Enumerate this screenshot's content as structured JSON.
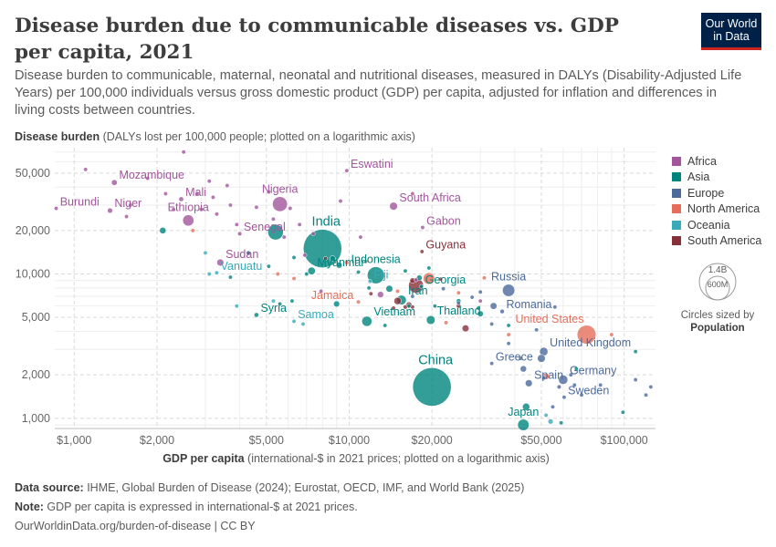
{
  "header": {
    "title": "Disease burden due to communicable diseases vs. GDP per capita, 2021",
    "subtitle": "Disease burden to communicable, maternal, neonatal and nutritional diseases, measured in DALYs (Disability-Adjusted Life Years) per 100,000 individuals versus gross domestic product (GDP) per capita, adjusted for inflation and differences in living costs between countries.",
    "logo_line1": "Our World",
    "logo_line2": "in Data"
  },
  "axes": {
    "y_label_bold": "Disease burden",
    "y_label_rest": " (DALYs lost per 100,000 people; plotted on a logarithmic axis)",
    "x_label_bold": "GDP per capita",
    "x_label_rest": " (international-$ in 2021 prices; plotted on a logarithmic axis)"
  },
  "legend": {
    "items": [
      {
        "label": "Africa",
        "color": "#a2559c"
      },
      {
        "label": "Asia",
        "color": "#00847e"
      },
      {
        "label": "Europe",
        "color": "#4c6a9c"
      },
      {
        "label": "North America",
        "color": "#e56e5a"
      },
      {
        "label": "Oceania",
        "color": "#38aaba"
      },
      {
        "label": "South America",
        "color": "#883039"
      }
    ],
    "size_big": "1.4B",
    "size_small": "600M",
    "size_caption": "Circles sized by",
    "size_caption_bold": "Population"
  },
  "footer": {
    "source_label": "Data source:",
    "source_text": " IHME, Global Burden of Disease (2024); Eurostat, OECD, IMF, and World Bank (2025)",
    "note_label": "Note:",
    "note_text": " GDP per capita is expressed in international-$ at 2021 prices.",
    "url": "OurWorldinData.org/burden-of-disease | CC BY"
  },
  "chart_data": {
    "type": "scatter",
    "x_scale": "log",
    "y_scale": "log",
    "xlim": [
      850,
      130000
    ],
    "ylim": [
      850,
      75000
    ],
    "x_ticks": [
      1000,
      2000,
      5000,
      10000,
      20000,
      50000,
      100000
    ],
    "x_tick_labels": [
      "$1,000",
      "$2,000",
      "$5,000",
      "$10,000",
      "$20,000",
      "$50,000",
      "$100,000"
    ],
    "y_ticks": [
      1000,
      2000,
      5000,
      10000,
      20000,
      50000
    ],
    "y_tick_labels": [
      "1,000",
      "2,000",
      "5,000",
      "10,000",
      "20,000",
      "50,000"
    ],
    "grid": true,
    "legend_position": "right",
    "labeled_points": [
      {
        "name": "Burundi",
        "region": "Africa",
        "x": 860,
        "y": 28500,
        "pop": 12.5
      },
      {
        "name": "Mozambique",
        "region": "Africa",
        "x": 1400,
        "y": 43000,
        "pop": 32
      },
      {
        "name": "Niger",
        "region": "Africa",
        "x": 1350,
        "y": 27500,
        "pop": 25
      },
      {
        "name": "Mali",
        "region": "Africa",
        "x": 2450,
        "y": 33000,
        "pop": 22
      },
      {
        "name": "Ethiopia",
        "region": "Africa",
        "x": 2600,
        "y": 23500,
        "pop": 120
      },
      {
        "name": "Sudan",
        "region": "Africa",
        "x": 3400,
        "y": 12000,
        "pop": 46
      },
      {
        "name": "Senegal",
        "region": "Africa",
        "x": 4000,
        "y": 19000,
        "pop": 17
      },
      {
        "name": "Nigeria",
        "region": "Africa",
        "x": 5600,
        "y": 30500,
        "pop": 213
      },
      {
        "name": "Eswatini",
        "region": "Africa",
        "x": 9800,
        "y": 52000,
        "pop": 1.2
      },
      {
        "name": "South Africa",
        "region": "Africa",
        "x": 14500,
        "y": 29500,
        "pop": 60
      },
      {
        "name": "Gabon",
        "region": "Africa",
        "x": 18500,
        "y": 21000,
        "pop": 2.3
      },
      {
        "name": "India",
        "region": "Asia",
        "x": 8000,
        "y": 15000,
        "pop": 1410
      },
      {
        "name": "Myanmar",
        "region": "Asia",
        "x": 7300,
        "y": 10500,
        "pop": 54
      },
      {
        "name": "Syria",
        "region": "Asia",
        "x": 4600,
        "y": 5200,
        "pop": 21
      },
      {
        "name": "Indonesia",
        "region": "Asia",
        "x": 12500,
        "y": 9800,
        "pop": 274
      },
      {
        "name": "Iran",
        "region": "Asia",
        "x": 15500,
        "y": 6600,
        "pop": 88
      },
      {
        "name": "Vietnam",
        "region": "Asia",
        "x": 11600,
        "y": 4700,
        "pop": 98
      },
      {
        "name": "Thailand",
        "region": "Asia",
        "x": 19800,
        "y": 4800,
        "pop": 72
      },
      {
        "name": "Georgia",
        "region": "Asia",
        "x": 18300,
        "y": 8200,
        "pop": 3.7
      },
      {
        "name": "Japan",
        "region": "Asia",
        "x": 43000,
        "y": 900,
        "pop": 125
      },
      {
        "name": "China",
        "region": "Asia",
        "x": 20000,
        "y": 1650,
        "pop": 1420
      },
      {
        "name": "Russia",
        "region": "Europe",
        "x": 38000,
        "y": 7700,
        "pop": 145
      },
      {
        "name": "Romania",
        "region": "Europe",
        "x": 36000,
        "y": 5500,
        "pop": 19
      },
      {
        "name": "United Kingdom",
        "region": "Europe",
        "x": 51000,
        "y": 2900,
        "pop": 67
      },
      {
        "name": "Greece",
        "region": "Europe",
        "x": 33000,
        "y": 2400,
        "pop": 10.5
      },
      {
        "name": "Spain",
        "region": "Europe",
        "x": 45000,
        "y": 1750,
        "pop": 47
      },
      {
        "name": "Germany",
        "region": "Europe",
        "x": 60000,
        "y": 1850,
        "pop": 83
      },
      {
        "name": "Sweden",
        "region": "Europe",
        "x": 60500,
        "y": 1400,
        "pop": 10.4
      },
      {
        "name": "United States",
        "region": "North America",
        "x": 73000,
        "y": 3800,
        "pop": 337
      },
      {
        "name": "Jamaica",
        "region": "North America",
        "x": 10800,
        "y": 6400,
        "pop": 2.8
      },
      {
        "name": "Guyana",
        "region": "South America",
        "x": 18400,
        "y": 14300,
        "pop": 0.8
      },
      {
        "name": "Fiji",
        "region": "Oceania",
        "x": 11900,
        "y": 8900,
        "pop": 0.9
      },
      {
        "name": "Vanuatu",
        "region": "Oceania",
        "x": 3300,
        "y": 10200,
        "pop": 0.3
      },
      {
        "name": "Samoa",
        "region": "Oceania",
        "x": 6300,
        "y": 4700,
        "pop": 0.2
      }
    ],
    "other_points": [
      {
        "region": "Africa",
        "x": 1100,
        "y": 53000,
        "pop": 5
      },
      {
        "region": "Africa",
        "x": 1600,
        "y": 30000,
        "pop": 12
      },
      {
        "region": "Africa",
        "x": 1550,
        "y": 25000,
        "pop": 9
      },
      {
        "region": "Africa",
        "x": 1850,
        "y": 46000,
        "pop": 5
      },
      {
        "region": "Africa",
        "x": 2150,
        "y": 36000,
        "pop": 10
      },
      {
        "region": "Africa",
        "x": 2300,
        "y": 28000,
        "pop": 8
      },
      {
        "region": "Africa",
        "x": 2500,
        "y": 70000,
        "pop": 5
      },
      {
        "region": "Africa",
        "x": 2800,
        "y": 36000,
        "pop": 12
      },
      {
        "region": "Africa",
        "x": 2900,
        "y": 28000,
        "pop": 16
      },
      {
        "region": "Africa",
        "x": 3100,
        "y": 44000,
        "pop": 8
      },
      {
        "region": "Africa",
        "x": 3200,
        "y": 34000,
        "pop": 8
      },
      {
        "region": "Africa",
        "x": 3300,
        "y": 26000,
        "pop": 14
      },
      {
        "region": "Africa",
        "x": 3600,
        "y": 41000,
        "pop": 5
      },
      {
        "region": "Africa",
        "x": 3700,
        "y": 30000,
        "pop": 6
      },
      {
        "region": "Africa",
        "x": 3900,
        "y": 22000,
        "pop": 10
      },
      {
        "region": "Africa",
        "x": 4300,
        "y": 14000,
        "pop": 8
      },
      {
        "region": "Africa",
        "x": 4600,
        "y": 29000,
        "pop": 14
      },
      {
        "region": "Africa",
        "x": 5100,
        "y": 37000,
        "pop": 4
      },
      {
        "region": "Africa",
        "x": 5300,
        "y": 24000,
        "pop": 9
      },
      {
        "region": "Africa",
        "x": 5800,
        "y": 18000,
        "pop": 8
      },
      {
        "region": "Africa",
        "x": 6100,
        "y": 28500,
        "pop": 16
      },
      {
        "region": "Africa",
        "x": 6600,
        "y": 22000,
        "pop": 8
      },
      {
        "region": "Africa",
        "x": 6900,
        "y": 13500,
        "pop": 4
      },
      {
        "region": "Africa",
        "x": 7400,
        "y": 19000,
        "pop": 6
      },
      {
        "region": "Africa",
        "x": 9300,
        "y": 32000,
        "pop": 2
      },
      {
        "region": "Africa",
        "x": 7900,
        "y": 7600,
        "pop": 4
      },
      {
        "region": "Africa",
        "x": 11000,
        "y": 18000,
        "pop": 3
      },
      {
        "region": "Africa",
        "x": 13000,
        "y": 7200,
        "pop": 37
      },
      {
        "region": "Africa",
        "x": 17000,
        "y": 36000,
        "pop": 2.5
      },
      {
        "region": "Africa",
        "x": 17500,
        "y": 9100,
        "pop": 12
      },
      {
        "region": "Africa",
        "x": 30000,
        "y": 6500,
        "pop": 1.3
      },
      {
        "region": "Asia",
        "x": 2100,
        "y": 20000,
        "pop": 40
      },
      {
        "region": "Asia",
        "x": 3700,
        "y": 9500,
        "pop": 3
      },
      {
        "region": "Asia",
        "x": 4300,
        "y": 14000,
        "pop": 3
      },
      {
        "region": "Asia",
        "x": 5400,
        "y": 19500,
        "pop": 230
      },
      {
        "region": "Asia",
        "x": 5100,
        "y": 11300,
        "pop": 9
      },
      {
        "region": "Asia",
        "x": 5600,
        "y": 6200,
        "pop": 10
      },
      {
        "region": "Asia",
        "x": 6200,
        "y": 6500,
        "pop": 2
      },
      {
        "region": "Asia",
        "x": 6300,
        "y": 13000,
        "pop": 7
      },
      {
        "region": "Asia",
        "x": 7000,
        "y": 10000,
        "pop": 5
      },
      {
        "region": "Asia",
        "x": 8700,
        "y": 12800,
        "pop": 30
      },
      {
        "region": "Asia",
        "x": 9000,
        "y": 6200,
        "pop": 35
      },
      {
        "region": "Asia",
        "x": 9200,
        "y": 11500,
        "pop": 35
      },
      {
        "region": "Asia",
        "x": 10800,
        "y": 10300,
        "pop": 6
      },
      {
        "region": "Asia",
        "x": 11800,
        "y": 8000,
        "pop": 5
      },
      {
        "region": "Asia",
        "x": 13500,
        "y": 4400,
        "pop": 4
      },
      {
        "region": "Asia",
        "x": 14000,
        "y": 7900,
        "pop": 45
      },
      {
        "region": "Asia",
        "x": 16000,
        "y": 10500,
        "pop": 4
      },
      {
        "region": "Asia",
        "x": 16500,
        "y": 6000,
        "pop": 6
      },
      {
        "region": "Asia",
        "x": 18000,
        "y": 9400,
        "pop": 30
      },
      {
        "region": "Asia",
        "x": 19500,
        "y": 11000,
        "pop": 3
      },
      {
        "region": "Asia",
        "x": 20500,
        "y": 6000,
        "pop": 8
      },
      {
        "region": "Asia",
        "x": 25000,
        "y": 6500,
        "pop": 20
      },
      {
        "region": "Asia",
        "x": 29500,
        "y": 5800,
        "pop": 5
      },
      {
        "region": "Asia",
        "x": 30000,
        "y": 5300,
        "pop": 33
      },
      {
        "region": "Asia",
        "x": 38000,
        "y": 4400,
        "pop": 1.5
      },
      {
        "region": "Asia",
        "x": 44000,
        "y": 1200,
        "pop": 51
      },
      {
        "region": "Asia",
        "x": 59000,
        "y": 930,
        "pop": 3.5
      },
      {
        "region": "Asia",
        "x": 67000,
        "y": 2200,
        "pop": 10
      },
      {
        "region": "Asia",
        "x": 99000,
        "y": 1100,
        "pop": 3
      },
      {
        "region": "Asia",
        "x": 110000,
        "y": 2900,
        "pop": 3
      },
      {
        "region": "Europe",
        "x": 17000,
        "y": 7000,
        "pop": 7
      },
      {
        "region": "Europe",
        "x": 22000,
        "y": 7900,
        "pop": 10
      },
      {
        "region": "Europe",
        "x": 25000,
        "y": 6300,
        "pop": 4
      },
      {
        "region": "Europe",
        "x": 28000,
        "y": 6900,
        "pop": 7
      },
      {
        "region": "Europe",
        "x": 30000,
        "y": 7500,
        "pop": 2.8
      },
      {
        "region": "Europe",
        "x": 33000,
        "y": 4500,
        "pop": 1.9
      },
      {
        "region": "Europe",
        "x": 33500,
        "y": 6000,
        "pop": 44
      },
      {
        "region": "Europe",
        "x": 38000,
        "y": 3300,
        "pop": 10
      },
      {
        "region": "Europe",
        "x": 42000,
        "y": 2600,
        "pop": 10
      },
      {
        "region": "Europe",
        "x": 43000,
        "y": 2200,
        "pop": 38
      },
      {
        "region": "Europe",
        "x": 48000,
        "y": 4100,
        "pop": 4
      },
      {
        "region": "Europe",
        "x": 50000,
        "y": 2600,
        "pop": 59
      },
      {
        "region": "Europe",
        "x": 51000,
        "y": 1900,
        "pop": 10
      },
      {
        "region": "Europe",
        "x": 55000,
        "y": 1200,
        "pop": 5.5
      },
      {
        "region": "Europe",
        "x": 56000,
        "y": 5900,
        "pop": 1.3
      },
      {
        "region": "Europe",
        "x": 58000,
        "y": 1650,
        "pop": 17
      },
      {
        "region": "Europe",
        "x": 64000,
        "y": 2000,
        "pop": 9
      },
      {
        "region": "Europe",
        "x": 66000,
        "y": 1700,
        "pop": 5.5
      },
      {
        "region": "Europe",
        "x": 70000,
        "y": 1450,
        "pop": 5.4
      },
      {
        "region": "Europe",
        "x": 82000,
        "y": 1700,
        "pop": 8.7
      },
      {
        "region": "Europe",
        "x": 110000,
        "y": 1850,
        "pop": 5
      },
      {
        "region": "Europe",
        "x": 120000,
        "y": 1450,
        "pop": 0.6
      },
      {
        "region": "Europe",
        "x": 125000,
        "y": 1650,
        "pop": 0.6
      },
      {
        "region": "North America",
        "x": 2700,
        "y": 20000,
        "pop": 11
      },
      {
        "region": "North America",
        "x": 5500,
        "y": 10000,
        "pop": 6
      },
      {
        "region": "North America",
        "x": 6300,
        "y": 9300,
        "pop": 10
      },
      {
        "region": "North America",
        "x": 9800,
        "y": 12000,
        "pop": 18
      },
      {
        "region": "North America",
        "x": 11500,
        "y": 12200,
        "pop": 11
      },
      {
        "region": "North America",
        "x": 15000,
        "y": 7600,
        "pop": 11
      },
      {
        "region": "North America",
        "x": 19500,
        "y": 9300,
        "pop": 128
      },
      {
        "region": "North America",
        "x": 22500,
        "y": 4600,
        "pop": 5
      },
      {
        "region": "North America",
        "x": 25000,
        "y": 7400,
        "pop": 1.4
      },
      {
        "region": "North America",
        "x": 31000,
        "y": 9400,
        "pop": 4.4
      },
      {
        "region": "North America",
        "x": 38000,
        "y": 3800,
        "pop": 0.4
      },
      {
        "region": "North America",
        "x": 52000,
        "y": 1950,
        "pop": 38
      },
      {
        "region": "North America",
        "x": 90000,
        "y": 3800,
        "pop": 0.1
      },
      {
        "region": "Oceania",
        "x": 3000,
        "y": 14000,
        "pop": 9.9
      },
      {
        "region": "Oceania",
        "x": 3100,
        "y": 10000,
        "pop": 0.7
      },
      {
        "region": "Oceania",
        "x": 3900,
        "y": 6000,
        "pop": 0.1
      },
      {
        "region": "Oceania",
        "x": 5300,
        "y": 6500,
        "pop": 0.1
      },
      {
        "region": "Oceania",
        "x": 6800,
        "y": 4500,
        "pop": 0.2
      },
      {
        "region": "Oceania",
        "x": 52000,
        "y": 1050,
        "pop": 5.1
      },
      {
        "region": "Oceania",
        "x": 54000,
        "y": 950,
        "pop": 25.7
      },
      {
        "region": "South America",
        "x": 8200,
        "y": 12800,
        "pop": 11.8
      },
      {
        "region": "South America",
        "x": 12000,
        "y": 7300,
        "pop": 6.7
      },
      {
        "region": "South America",
        "x": 14500,
        "y": 5800,
        "pop": 2.9
      },
      {
        "region": "South America",
        "x": 15000,
        "y": 6500,
        "pop": 51
      },
      {
        "region": "South America",
        "x": 16000,
        "y": 5900,
        "pop": 18
      },
      {
        "region": "South America",
        "x": 16500,
        "y": 6100,
        "pop": 33
      },
      {
        "region": "South America",
        "x": 17000,
        "y": 5900,
        "pop": 7
      },
      {
        "region": "South America",
        "x": 17500,
        "y": 8300,
        "pop": 214
      },
      {
        "region": "South America",
        "x": 17000,
        "y": 9000,
        "pop": 28
      },
      {
        "region": "South America",
        "x": 21500,
        "y": 9200,
        "pop": 3.4
      },
      {
        "region": "South America",
        "x": 25000,
        "y": 6000,
        "pop": 19
      },
      {
        "region": "South America",
        "x": 26500,
        "y": 4200,
        "pop": 45
      }
    ]
  }
}
